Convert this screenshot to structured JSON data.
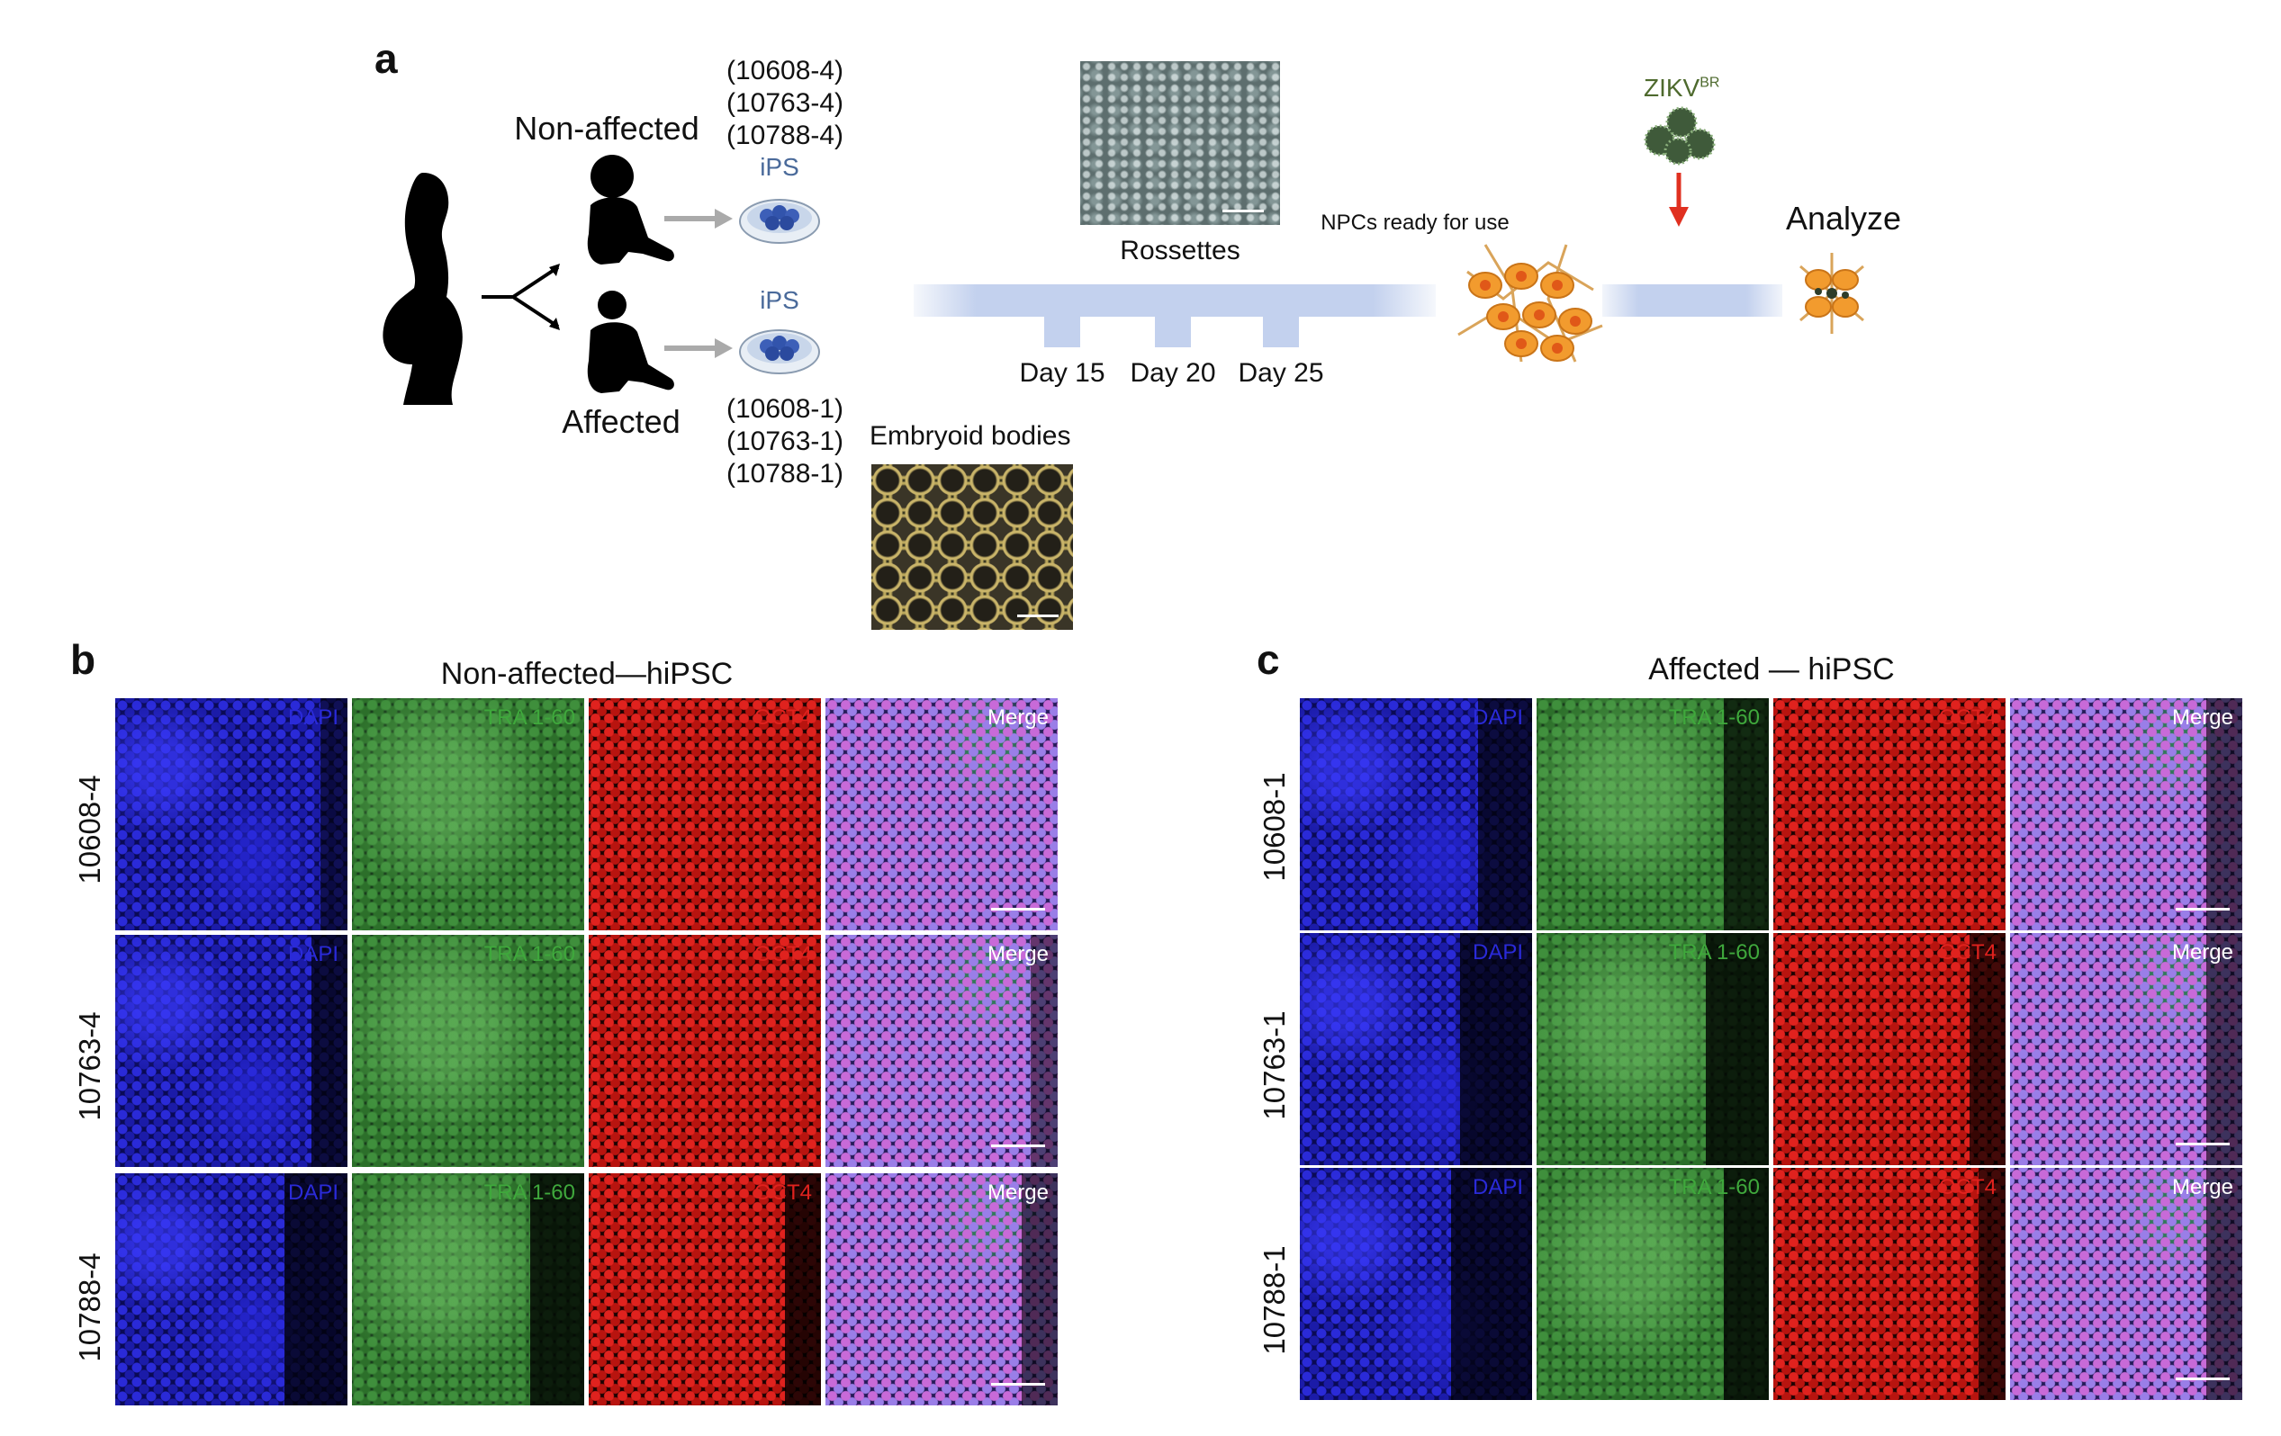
{
  "panel_a": {
    "letter": "a",
    "non_affected_label": "Non-affected",
    "affected_label": "Affected",
    "non_affected_ids": [
      "(10608-4)",
      "(10763-4)",
      "(10788-4)"
    ],
    "affected_ids": [
      "(10608-1)",
      "(10763-1)",
      "(10788-1)"
    ],
    "ips_label": "iPS",
    "embryoid_label": "Embryoid bodies",
    "rosettes_label": "Rossettes",
    "days": [
      "Day 15",
      "Day 20",
      "Day 25"
    ],
    "npcs_label": "NPCs ready for use",
    "zikv_label": "ZIKV",
    "zikv_sup": "BR",
    "analyze_label": "Analyze"
  },
  "panel_b": {
    "letter": "b",
    "title": "Non-affected—hiPSC",
    "rows": [
      "10608-4",
      "10763-4",
      "10788-4"
    ]
  },
  "panel_c": {
    "letter": "c",
    "title": "Affected — hiPSC",
    "rows": [
      "10608-1",
      "10763-1",
      "10788-1"
    ]
  },
  "channels": [
    "DAPI",
    "TRA 1-60",
    "OCT4",
    "Merge"
  ],
  "channel_colors": {
    "DAPI": "#2a2ad8",
    "TRA 1-60": "#3fa83c",
    "OCT4": "#e0221e",
    "Merge": "#ffffff"
  }
}
